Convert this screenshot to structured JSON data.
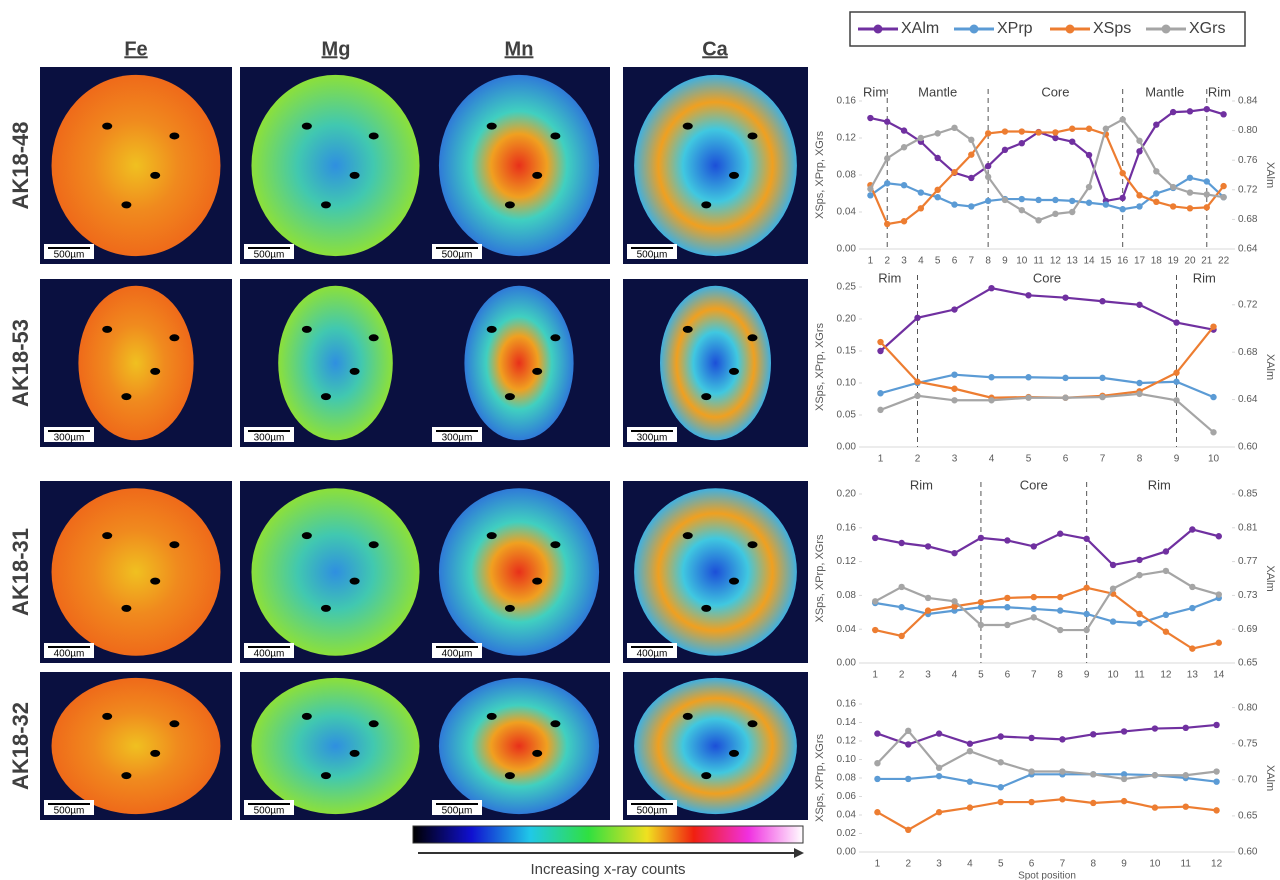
{
  "figure": {
    "columns": [
      "Fe",
      "Mg",
      "Mn",
      "Ca"
    ],
    "rows": [
      {
        "label": "AK18-48",
        "scale": "500µm"
      },
      {
        "label": "AK18-53",
        "scale": "300µm"
      },
      {
        "label": "AK18-31",
        "scale": "400µm"
      },
      {
        "label": "AK18-32",
        "scale": "500µm"
      }
    ],
    "colorbar_label": "Increasing x-ray counts"
  },
  "chart_data": [
    {
      "type": "line",
      "y_label": "XSps, XPrp, XGrs",
      "y2_label": "XAlm",
      "x": [
        1,
        2,
        3,
        4,
        5,
        6,
        7,
        8,
        9,
        10,
        11,
        12,
        13,
        14,
        15,
        16,
        17,
        18,
        19,
        20,
        21,
        22
      ],
      "ylim": [
        0,
        0.16
      ],
      "yticks": [
        {
          "value": 0,
          "label": "0.00"
        },
        0.04,
        0.08,
        0.12,
        0.16
      ],
      "y2lim": [
        0.64,
        0.84
      ],
      "y2ticks": [
        0.64,
        0.68,
        0.72,
        0.76,
        {
          "value": 0.8,
          "label": "0.80"
        },
        0.84
      ],
      "dividers": [
        2,
        8,
        16,
        21
      ],
      "zones": [
        "Rim",
        "Mantle",
        "Core",
        "Mantle",
        "Rim"
      ],
      "series": [
        {
          "name": "XAlm",
          "color": "#7030a0",
          "axis": "y2",
          "values": [
            0.817,
            0.812,
            0.8,
            0.785,
            0.763,
            0.743,
            0.736,
            0.752,
            0.774,
            0.783,
            0.798,
            0.79,
            0.785,
            0.767,
            0.705,
            0.709,
            0.772,
            0.808,
            0.825,
            0.826,
            0.829,
            0.822
          ]
        },
        {
          "name": "XPrp",
          "color": "#5b9bd5",
          "values": [
            0.058,
            0.071,
            0.069,
            0.061,
            0.056,
            0.048,
            0.046,
            0.052,
            0.054,
            0.054,
            0.053,
            0.053,
            0.052,
            0.05,
            0.048,
            0.043,
            0.046,
            0.06,
            0.066,
            0.077,
            0.073,
            0.056
          ]
        },
        {
          "name": "XSps",
          "color": "#ed7d31",
          "values": [
            0.069,
            0.027,
            0.03,
            0.044,
            0.064,
            0.083,
            0.102,
            0.125,
            0.127,
            0.127,
            0.126,
            0.126,
            0.13,
            0.13,
            0.124,
            0.082,
            0.058,
            0.051,
            0.046,
            0.044,
            0.045,
            0.068
          ]
        },
        {
          "name": "XGrs",
          "color": "#a5a5a5",
          "values": [
            0.065,
            0.098,
            0.11,
            0.12,
            0.125,
            0.131,
            0.118,
            0.078,
            0.053,
            0.042,
            0.031,
            0.038,
            0.04,
            0.067,
            0.13,
            0.14,
            0.117,
            0.084,
            0.067,
            0.061,
            0.059,
            0.056
          ]
        }
      ]
    },
    {
      "type": "line",
      "y_label": "XSps, XPrp, XGrs",
      "y2_label": "XAlm",
      "x": [
        1,
        2,
        3,
        4,
        5,
        6,
        7,
        8,
        9,
        10
      ],
      "ylim": [
        0,
        0.25
      ],
      "yticks": [
        {
          "value": 0,
          "label": "0.00"
        },
        0.05,
        {
          "value": 0.1,
          "label": "0.10"
        },
        0.15,
        {
          "value": 0.2,
          "label": "0.20"
        },
        0.25
      ],
      "y2lim": [
        0.6,
        0.735
      ],
      "y2ticks": [
        {
          "value": 0.6,
          "label": "0.60"
        },
        0.64,
        0.68,
        0.72
      ],
      "dividers": [
        2,
        9
      ],
      "zones": [
        "Rim",
        "Core",
        "Rim"
      ],
      "series": [
        {
          "name": "XAlm",
          "color": "#7030a0",
          "axis": "y2",
          "values": [
            0.681,
            0.709,
            0.716,
            0.734,
            0.728,
            0.726,
            0.723,
            0.72,
            0.705,
            0.699
          ]
        },
        {
          "name": "XPrp",
          "color": "#5b9bd5",
          "values": [
            0.084,
            0.1,
            0.113,
            0.109,
            0.109,
            0.108,
            0.108,
            0.1,
            0.102,
            0.078
          ]
        },
        {
          "name": "XSps",
          "color": "#ed7d31",
          "values": [
            0.164,
            0.102,
            0.091,
            0.077,
            0.078,
            0.077,
            0.08,
            0.087,
            0.116,
            0.188
          ]
        },
        {
          "name": "XGrs",
          "color": "#a5a5a5",
          "values": [
            0.058,
            0.08,
            0.073,
            0.073,
            0.077,
            0.077,
            0.078,
            0.083,
            0.073,
            0.023
          ]
        }
      ]
    },
    {
      "type": "line",
      "y_label": "XSps, XPrp, XGrs",
      "y2_label": "XAlm",
      "x": [
        1,
        2,
        3,
        4,
        5,
        6,
        7,
        8,
        9,
        10,
        11,
        12,
        13,
        14
      ],
      "ylim": [
        0,
        0.2
      ],
      "yticks": [
        {
          "value": 0,
          "label": "0.00"
        },
        0.04,
        0.08,
        0.12,
        0.16,
        {
          "value": 0.2,
          "label": "0.20"
        }
      ],
      "y2lim": [
        0.65,
        0.85
      ],
      "y2ticks": [
        0.65,
        0.69,
        0.73,
        0.77,
        0.81,
        0.85
      ],
      "dividers": [
        5,
        9
      ],
      "zones": [
        "Rim",
        "Core",
        "Rim"
      ],
      "series": [
        {
          "name": "XAlm",
          "color": "#7030a0",
          "axis": "y2",
          "values": [
            0.798,
            0.792,
            0.788,
            0.78,
            0.798,
            0.795,
            0.788,
            0.803,
            0.797,
            0.766,
            0.772,
            0.782,
            0.808,
            0.8
          ]
        },
        {
          "name": "XPrp",
          "color": "#5b9bd5",
          "values": [
            0.071,
            0.066,
            0.058,
            0.062,
            0.066,
            0.066,
            0.064,
            0.062,
            0.058,
            0.049,
            0.047,
            0.057,
            0.065,
            0.077
          ]
        },
        {
          "name": "XSps",
          "color": "#ed7d31",
          "values": [
            0.039,
            0.032,
            0.062,
            0.067,
            0.072,
            0.077,
            0.078,
            0.078,
            0.089,
            0.082,
            0.058,
            0.037,
            0.017,
            0.024
          ]
        },
        {
          "name": "XGrs",
          "color": "#a5a5a5",
          "values": [
            0.073,
            0.09,
            0.077,
            0.073,
            0.045,
            0.045,
            0.054,
            0.039,
            0.039,
            0.088,
            0.104,
            0.109,
            0.09,
            0.081
          ]
        }
      ]
    },
    {
      "type": "line",
      "y_label": "XSps, XPrp, XGrs",
      "y2_label": "XAlm",
      "x_label": "Spot position",
      "x": [
        1,
        2,
        3,
        4,
        5,
        6,
        7,
        8,
        9,
        10,
        11,
        12
      ],
      "ylim": [
        0,
        0.16
      ],
      "yticks": [
        {
          "value": 0,
          "label": "0.00"
        },
        0.02,
        0.04,
        0.06,
        0.08,
        {
          "value": 0.1,
          "label": "0.10"
        },
        0.12,
        0.14,
        0.16
      ],
      "y2lim": [
        0.6,
        0.805
      ],
      "y2ticks": [
        {
          "value": 0.6,
          "label": "0.60"
        },
        0.65,
        {
          "value": 0.7,
          "label": "0.70"
        },
        0.75,
        {
          "value": 0.8,
          "label": "0.80"
        }
      ],
      "series": [
        {
          "name": "XAlm",
          "color": "#7030a0",
          "axis": "y2",
          "values": [
            0.764,
            0.749,
            0.764,
            0.75,
            0.76,
            0.758,
            0.756,
            0.763,
            0.767,
            0.771,
            0.772,
            0.776
          ]
        },
        {
          "name": "XPrp",
          "color": "#5b9bd5",
          "values": [
            0.079,
            0.079,
            0.082,
            0.076,
            0.07,
            0.084,
            0.084,
            0.084,
            0.084,
            0.083,
            0.08,
            0.076
          ]
        },
        {
          "name": "XSps",
          "color": "#ed7d31",
          "values": [
            0.043,
            0.024,
            0.043,
            0.048,
            0.054,
            0.054,
            0.057,
            0.053,
            0.055,
            0.048,
            0.049,
            0.045
          ]
        },
        {
          "name": "XGrs",
          "color": "#a5a5a5",
          "values": [
            0.096,
            0.131,
            0.091,
            0.109,
            0.097,
            0.087,
            0.087,
            0.084,
            0.079,
            0.083,
            0.083,
            0.087
          ]
        }
      ]
    }
  ]
}
